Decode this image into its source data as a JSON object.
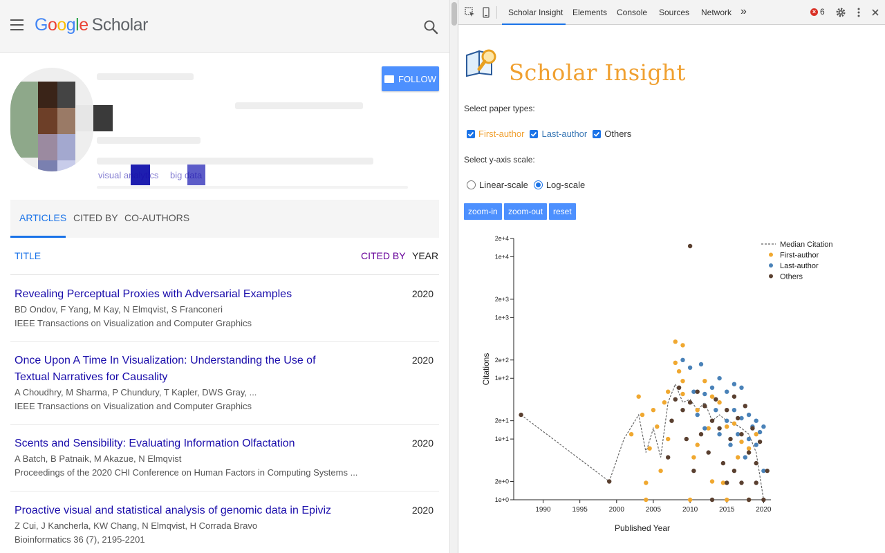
{
  "scholar": {
    "logo_google": "Google",
    "logo_scholar": "Scholar",
    "follow_label": "FOLLOW",
    "interests": [
      "visual analytics",
      "big data"
    ],
    "tabs": [
      {
        "label": "ARTICLES",
        "active": true
      },
      {
        "label": "CITED BY",
        "active": false
      },
      {
        "label": "CO-AUTHORS",
        "active": false
      }
    ],
    "columns": {
      "title": "TITLE",
      "cited_by": "CITED BY",
      "year": "YEAR"
    },
    "articles": [
      {
        "title": "Revealing Perceptual Proxies with Adversarial Examples",
        "authors": "BD Ondov, F Yang, M Kay, N Elmqvist, S Franconeri",
        "venue": "IEEE Transactions on Visualization and Computer Graphics",
        "year": "2020"
      },
      {
        "title": "Once Upon A Time In Visualization: Understanding the Use of Textual Narratives for Causality",
        "authors": "A Choudhry, M Sharma, P Chundury, T Kapler, DWS Gray, ...",
        "venue": "IEEE Transactions on Visualization and Computer Graphics",
        "year": "2020"
      },
      {
        "title": "Scents and Sensibility: Evaluating Information Olfactation",
        "authors": "A Batch, B Patnaik, M Akazue, N Elmqvist",
        "venue": "Proceedings of the 2020 CHI Conference on Human Factors in Computing Systems ...",
        "year": "2020"
      },
      {
        "title": "Proactive visual and statistical analysis of genomic data in Epiviz",
        "authors": "Z Cui, J Kancherla, KW Chang, N Elmqvist, H Corrada Bravo",
        "venue": "Bioinformatics 36 (7), 2195-2201",
        "year": "2020"
      }
    ]
  },
  "devtools": {
    "tabs": [
      "Scholar Insight",
      "Elements",
      "Console",
      "Sources",
      "Network"
    ],
    "more": "»",
    "error_count": "6"
  },
  "insight": {
    "title": "Scholar Insight",
    "paper_types_label": "Select paper types:",
    "paper_types": [
      {
        "label": "First-author",
        "checked": true,
        "color": "#f0a030"
      },
      {
        "label": "Last-author",
        "checked": true,
        "color": "#3a78b5"
      },
      {
        "label": "Others",
        "checked": true,
        "color": "#333333"
      }
    ],
    "scale_label": "Select y-axis scale:",
    "scales": [
      {
        "label": "Linear-scale",
        "selected": false
      },
      {
        "label": "Log-scale",
        "selected": true
      }
    ],
    "buttons": [
      "zoom-in",
      "zoom-out",
      "reset"
    ]
  },
  "colors": {
    "first": "#f0a830",
    "last": "#4a82b8",
    "others": "#5a4030",
    "median": "#666666"
  },
  "chart_data": {
    "type": "scatter",
    "xlabel": "Published Year",
    "ylabel": "Citations",
    "xlim": [
      1986,
      2021
    ],
    "ylim_log": [
      1,
      20000
    ],
    "log_scale": true,
    "x_ticks": [
      "1990",
      "1995",
      "2000",
      "2005",
      "2010",
      "2015",
      "2020"
    ],
    "x_tick_values": [
      1990,
      1995,
      2000,
      2005,
      2010,
      2015,
      2020
    ],
    "y_ticks": [
      "1e+0",
      "2e+0",
      "1e+1",
      "2e+1",
      "1e+2",
      "2e+2",
      "1e+3",
      "2e+3",
      "1e+4",
      "2e+4"
    ],
    "y_tick_values": [
      1,
      2,
      10,
      20,
      100,
      200,
      1000,
      2000,
      10000,
      20000
    ],
    "legend": [
      "Median Citation",
      "First-author",
      "Last-author",
      "Others"
    ],
    "legend_position": "top-right",
    "median": [
      [
        1987,
        25
      ],
      [
        1999,
        2
      ],
      [
        2001,
        10
      ],
      [
        2003,
        25
      ],
      [
        2004,
        6
      ],
      [
        2005,
        15
      ],
      [
        2006,
        5
      ],
      [
        2007,
        40
      ],
      [
        2008,
        80
      ],
      [
        2009,
        40
      ],
      [
        2010,
        45
      ],
      [
        2011,
        30
      ],
      [
        2012,
        40
      ],
      [
        2013,
        20
      ],
      [
        2014,
        25
      ],
      [
        2015,
        20
      ],
      [
        2016,
        18
      ],
      [
        2017,
        15
      ],
      [
        2018,
        12
      ],
      [
        2019,
        6
      ],
      [
        2020,
        1
      ]
    ],
    "series": [
      {
        "name": "First-author",
        "points": [
          [
            2002,
            12
          ],
          [
            2003,
            50
          ],
          [
            2003.5,
            25
          ],
          [
            2004,
            1.9
          ],
          [
            2004,
            1
          ],
          [
            2004.5,
            7
          ],
          [
            2005,
            30
          ],
          [
            2005.5,
            16
          ],
          [
            2006,
            3
          ],
          [
            2006.5,
            40
          ],
          [
            2007,
            60
          ],
          [
            2007,
            10
          ],
          [
            2008,
            400
          ],
          [
            2008,
            180
          ],
          [
            2008.5,
            130
          ],
          [
            2009,
            350
          ],
          [
            2009,
            90
          ],
          [
            2009,
            55
          ],
          [
            2010,
            1
          ],
          [
            2010.5,
            5
          ],
          [
            2011,
            30
          ],
          [
            2011,
            8
          ],
          [
            2012,
            90
          ],
          [
            2012.5,
            15
          ],
          [
            2013,
            50
          ],
          [
            2013,
            2
          ],
          [
            2014,
            40
          ],
          [
            2014.5,
            1.9
          ],
          [
            2015,
            1
          ],
          [
            2015,
            16
          ],
          [
            2016,
            18
          ],
          [
            2016.5,
            5
          ],
          [
            2017,
            9
          ],
          [
            2018,
            1
          ],
          [
            2018,
            7
          ],
          [
            2019,
            12
          ]
        ]
      },
      {
        "name": "Last-author",
        "points": [
          [
            2009,
            200
          ],
          [
            2010,
            150
          ],
          [
            2010.5,
            60
          ],
          [
            2011,
            25
          ],
          [
            2011.5,
            170
          ],
          [
            2012,
            55
          ],
          [
            2012,
            15
          ],
          [
            2013,
            70
          ],
          [
            2013.5,
            30
          ],
          [
            2014,
            12
          ],
          [
            2014,
            100
          ],
          [
            2015,
            60
          ],
          [
            2015,
            20
          ],
          [
            2015.5,
            8
          ],
          [
            2016,
            80
          ],
          [
            2016,
            30
          ],
          [
            2016.5,
            12
          ],
          [
            2017,
            70
          ],
          [
            2017,
            22
          ],
          [
            2017.5,
            5
          ],
          [
            2018,
            25
          ],
          [
            2018,
            10
          ],
          [
            2018.5,
            16
          ],
          [
            2019,
            20
          ],
          [
            2019,
            8
          ],
          [
            2019.5,
            13
          ],
          [
            2020,
            16
          ],
          [
            2020,
            3
          ]
        ]
      },
      {
        "name": "Others",
        "points": [
          [
            2010,
            15000
          ],
          [
            1987,
            25
          ],
          [
            1999,
            2
          ],
          [
            2007,
            5
          ],
          [
            2007.5,
            20
          ],
          [
            2008,
            45
          ],
          [
            2008.5,
            70
          ],
          [
            2009,
            30
          ],
          [
            2009.5,
            10
          ],
          [
            2010,
            40
          ],
          [
            2010.5,
            3
          ],
          [
            2011,
            60
          ],
          [
            2011.5,
            12
          ],
          [
            2012,
            35
          ],
          [
            2012.5,
            6
          ],
          [
            2013,
            20
          ],
          [
            2013,
            1
          ],
          [
            2013.5,
            45
          ],
          [
            2014,
            15
          ],
          [
            2014.5,
            4
          ],
          [
            2015,
            30
          ],
          [
            2015,
            1.9
          ],
          [
            2015.5,
            10
          ],
          [
            2016,
            50
          ],
          [
            2016,
            3
          ],
          [
            2016.5,
            22
          ],
          [
            2017,
            12
          ],
          [
            2017,
            1.9
          ],
          [
            2017.5,
            35
          ],
          [
            2018,
            6
          ],
          [
            2018,
            1
          ],
          [
            2018.5,
            15
          ],
          [
            2019,
            4
          ],
          [
            2019,
            1.9
          ],
          [
            2019.5,
            9
          ],
          [
            2020,
            1
          ],
          [
            2020.5,
            3
          ]
        ]
      }
    ]
  }
}
